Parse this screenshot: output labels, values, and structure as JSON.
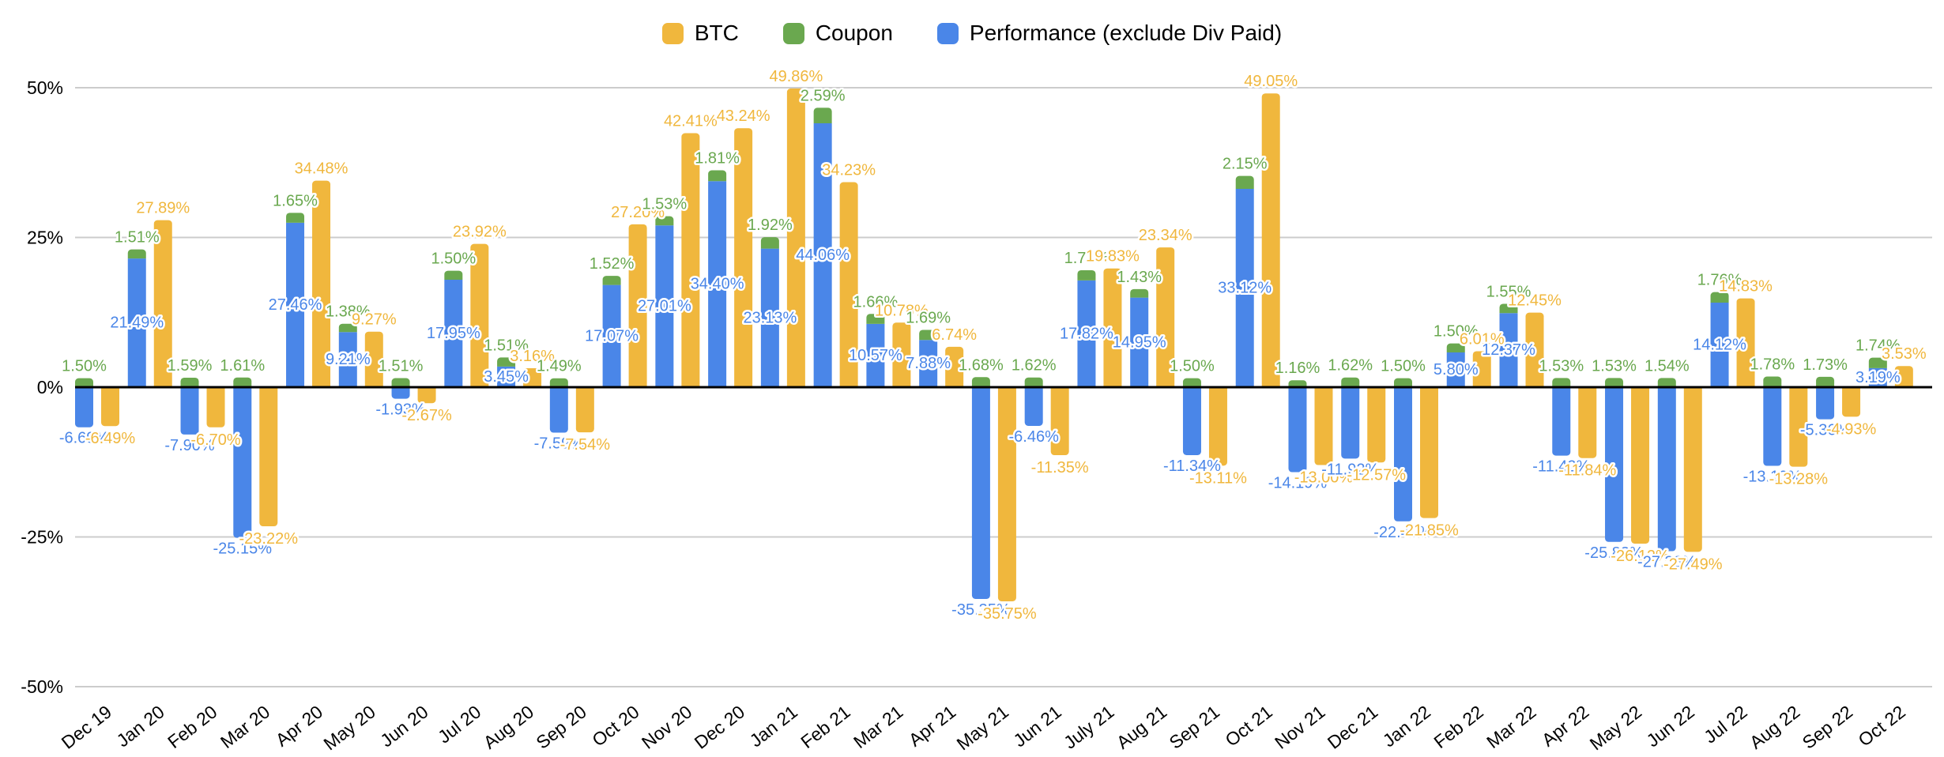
{
  "chart_data": {
    "type": "bar",
    "title": "",
    "legend_position": "top",
    "grid": true,
    "ylim": [
      -50,
      50
    ],
    "y_ticks": [
      {
        "label": "50%",
        "value": 50
      },
      {
        "label": "25%",
        "value": 25
      },
      {
        "label": "0%",
        "value": 0
      },
      {
        "label": "-25%",
        "value": -25
      },
      {
        "label": "-50%",
        "value": -50
      }
    ],
    "categories": [
      "Dec 19",
      "Jan 20",
      "Feb 20",
      "Mar 20",
      "Apr 20",
      "May 20",
      "Jun 20",
      "Jul 20",
      "Aug 20",
      "Sep 20",
      "Oct 20",
      "Nov 20",
      "Dec 20",
      "Jan 21",
      "Feb 21",
      "Mar 21",
      "Apr 21",
      "May 21",
      "Jun 21",
      "July 21",
      "Aug 21",
      "Sep 21",
      "Oct 21",
      "Nov 21",
      "Dec 21",
      "Jan 22",
      "Feb 22",
      "Mar 22",
      "Apr 22",
      "May 22",
      "Jun 22",
      "Jul 22",
      "Aug 22",
      "Sep 22",
      "Oct 22"
    ],
    "series": [
      {
        "name": "BTC",
        "color": "#F0B73D",
        "stacked": false,
        "values": [
          -6.49,
          27.89,
          -6.7,
          -23.22,
          34.48,
          9.27,
          -2.67,
          23.92,
          3.16,
          -7.54,
          27.2,
          42.41,
          43.24,
          49.86,
          34.23,
          10.78,
          6.74,
          -35.75,
          -11.35,
          19.83,
          23.34,
          -13.11,
          49.05,
          -13.0,
          -12.57,
          -21.85,
          6.01,
          12.45,
          -11.84,
          -26.12,
          -27.49,
          14.83,
          -13.28,
          -4.93,
          3.53
        ]
      },
      {
        "name": "Coupon",
        "color": "#6AA84F",
        "stacked": true,
        "values": [
          1.5,
          1.51,
          1.59,
          1.61,
          1.65,
          1.38,
          1.51,
          1.5,
          1.51,
          1.49,
          1.52,
          1.53,
          1.81,
          1.92,
          2.59,
          1.66,
          1.69,
          1.68,
          1.62,
          1.71,
          1.43,
          1.5,
          2.15,
          1.16,
          1.62,
          1.5,
          1.5,
          1.55,
          1.53,
          1.53,
          1.54,
          1.76,
          1.78,
          1.73,
          1.74
        ]
      },
      {
        "name": "Performance (exclude Div Paid)",
        "color": "#4A86E8",
        "stacked": true,
        "values": [
          -6.69,
          21.49,
          -7.9,
          -25.15,
          27.46,
          9.21,
          -1.93,
          17.95,
          3.45,
          -7.59,
          17.07,
          27.01,
          34.4,
          23.13,
          44.06,
          10.57,
          7.88,
          -35.35,
          -6.46,
          17.82,
          14.95,
          -11.34,
          33.12,
          -14.19,
          -11.92,
          -22.4,
          5.8,
          12.37,
          -11.42,
          -25.83,
          -27.38,
          14.12,
          -13.13,
          -5.36,
          3.19
        ]
      }
    ],
    "label_format": "two decimals with % sign",
    "colors": {
      "zero_axis": "#000000",
      "gridline": "#CCCCCC",
      "axis_text": "#000000",
      "background": "#FFFFFF",
      "label_halo": "#FFFFFF"
    }
  }
}
